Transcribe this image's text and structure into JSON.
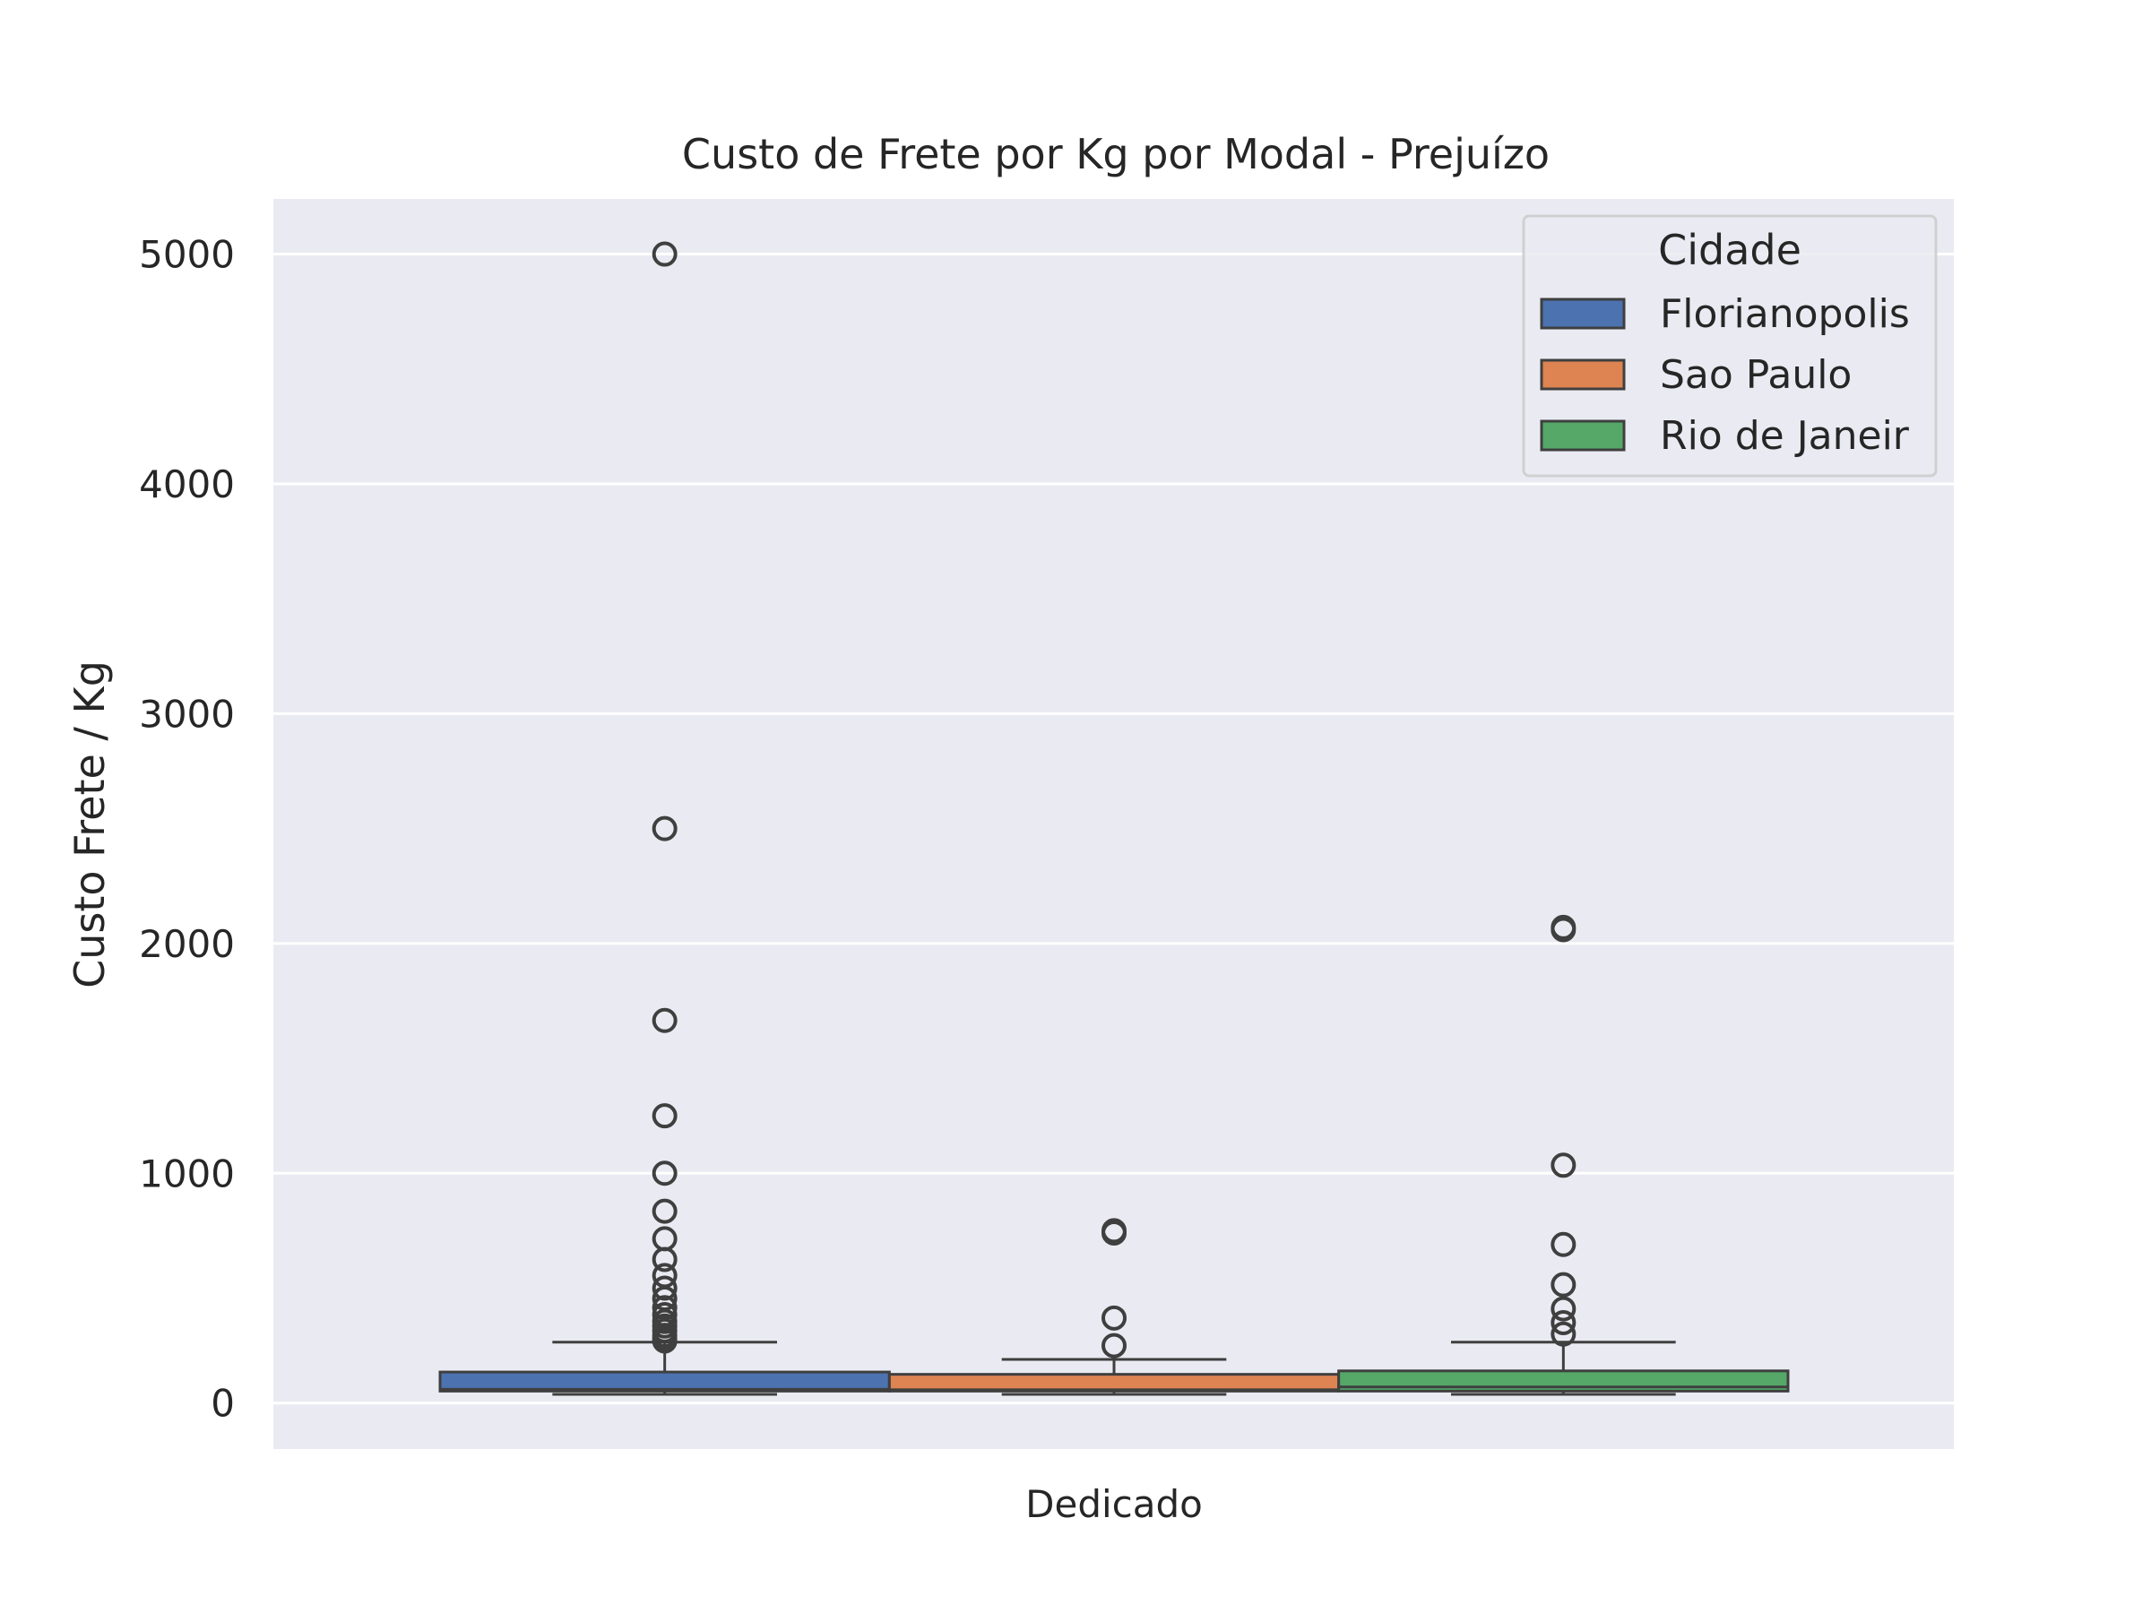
{
  "chart_data": {
    "type": "box",
    "title": "Custo de Frete por Kg por Modal - Prejuízo",
    "xlabel": "",
    "ylabel": "Custo Frete / Kg",
    "categories": [
      "Dedicado"
    ],
    "ylim": [
      -200,
      5240
    ],
    "yticks": [
      0,
      1000,
      2000,
      3000,
      4000,
      5000
    ],
    "grid": true,
    "background": "#eaeaf2",
    "edge_color": "#3f3f3f",
    "legend": {
      "title": "Cidade",
      "placement": "top-right"
    },
    "series": [
      {
        "name": "Florianopolis",
        "color": "#4c72b0",
        "category": "Dedicado",
        "whisker_low": 38,
        "q1": 52,
        "median": 60,
        "q3": 135,
        "whisker_high": 265,
        "outliers": [
          5000,
          2500,
          1665,
          1250,
          1000,
          835,
          715,
          625,
          555,
          500,
          455,
          415,
          385,
          355,
          335,
          315,
          295,
          280,
          270
        ]
      },
      {
        "name": "Sao Paulo",
        "color": "#dd8452",
        "category": "Dedicado",
        "whisker_low": 38,
        "q1": 52,
        "median": 58,
        "q3": 125,
        "whisker_high": 190,
        "outliers": [
          750,
          740,
          370,
          250
        ]
      },
      {
        "name": "Rio de Janeir",
        "color": "#55a868",
        "category": "Dedicado",
        "whisker_low": 38,
        "q1": 52,
        "median": 70,
        "q3": 140,
        "whisker_high": 265,
        "outliers": [
          2070,
          2060,
          1035,
          690,
          515,
          410,
          350,
          300
        ]
      }
    ]
  }
}
